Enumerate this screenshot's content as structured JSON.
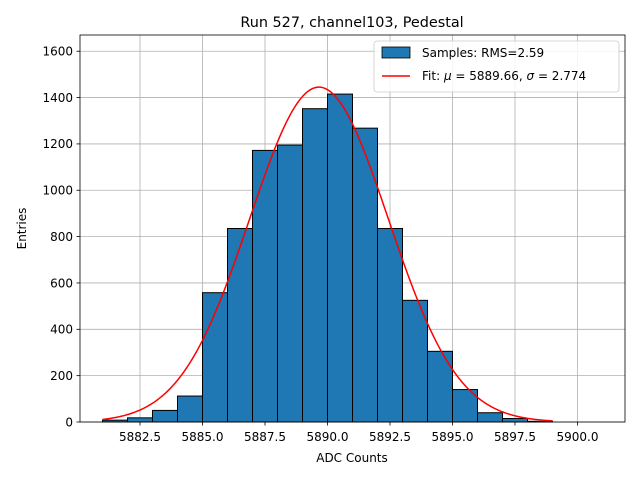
{
  "chart_data": {
    "type": "bar",
    "title": "Run 527, channel103, Pedestal",
    "xlabel": "ADC Counts",
    "ylabel": "Entries",
    "xlim": [
      5880.1,
      5901.9
    ],
    "ylim": [
      0,
      1670
    ],
    "xticks": [
      5882.5,
      5885.0,
      5887.5,
      5890.0,
      5892.5,
      5895.0,
      5897.5,
      5900.0
    ],
    "xtick_labels": [
      "5882.5",
      "5885.0",
      "5887.5",
      "5890.0",
      "5892.5",
      "5895.0",
      "5897.5",
      "5900.0"
    ],
    "yticks": [
      0,
      200,
      400,
      600,
      800,
      1000,
      1200,
      1400,
      1600
    ],
    "ytick_labels": [
      "0",
      "200",
      "400",
      "600",
      "800",
      "1000",
      "1200",
      "1400",
      "1600"
    ],
    "grid": true,
    "legend_position": "top-right",
    "histogram": {
      "name": "Samples: RMS=2.59",
      "color": "#1f77b4",
      "edgecolor": "#000000",
      "bin_edges": [
        5881,
        5882,
        5883,
        5884,
        5885,
        5886,
        5887,
        5888,
        5889,
        5890,
        5891,
        5892,
        5893,
        5894,
        5895,
        5896,
        5897,
        5898,
        5899,
        5900,
        5901
      ],
      "counts": [
        8,
        18,
        50,
        112,
        558,
        835,
        1172,
        1195,
        1352,
        1415,
        1268,
        835,
        525,
        305,
        140,
        40,
        15,
        3,
        0,
        0
      ]
    },
    "fit": {
      "name_prefix": "Fit: ",
      "mu_label": "μ",
      "mu_text": " = 5889.66, ",
      "sigma_label": "σ",
      "sigma_text": " = 2.774",
      "mu": 5889.66,
      "sigma": 2.774,
      "peak": 1445,
      "x_range": [
        5881.0,
        5899.0
      ],
      "color": "#ff0000"
    }
  }
}
